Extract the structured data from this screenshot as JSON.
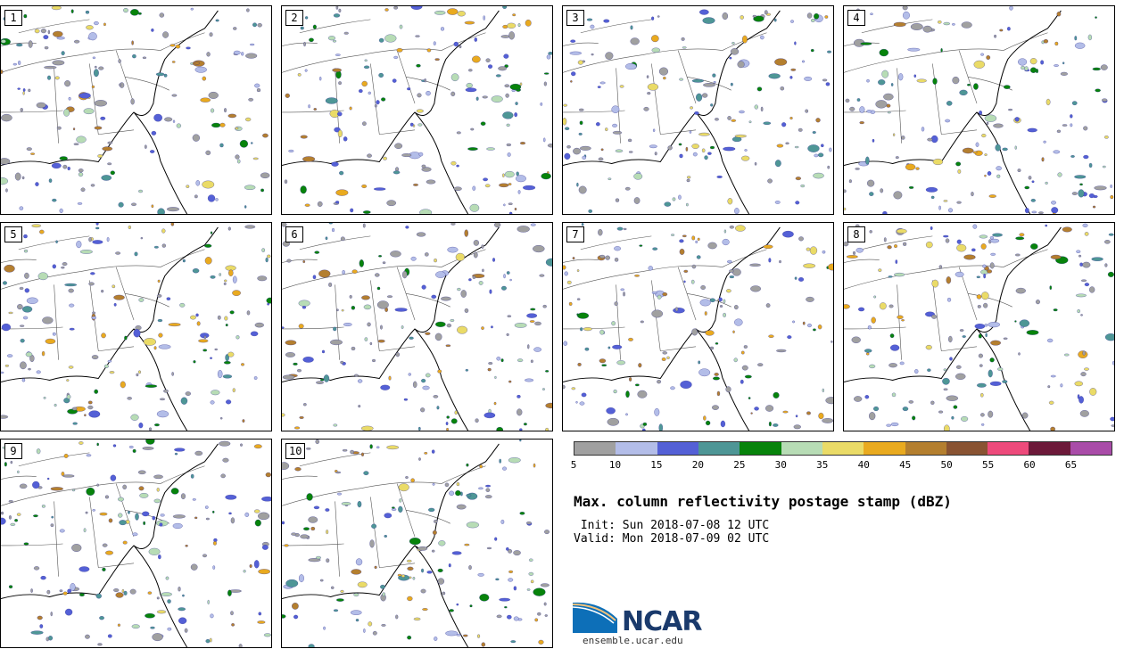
{
  "panels": [
    {
      "label": "1"
    },
    {
      "label": "2"
    },
    {
      "label": "3"
    },
    {
      "label": "4"
    },
    {
      "label": "5"
    },
    {
      "label": "6"
    },
    {
      "label": "7"
    },
    {
      "label": "8"
    },
    {
      "label": "9"
    },
    {
      "label": "10"
    }
  ],
  "colorbar": {
    "colors": [
      "#a0a0a0",
      "#b3bde8",
      "#5460d6",
      "#4e9696",
      "#07830b",
      "#b7dcb5",
      "#eadb67",
      "#e9aa1f",
      "#b47f2f",
      "#895332",
      "#ed4a7b",
      "#6c1939",
      "#a94ca8"
    ],
    "ticks": [
      "5",
      "10",
      "15",
      "20",
      "25",
      "30",
      "35",
      "40",
      "45",
      "50",
      "55",
      "60",
      "65"
    ]
  },
  "title": "Max. column reflectivity postage stamp (dBZ)",
  "init": " Init: Sun 2018-07-08 12 UTC",
  "valid": "Valid: Mon 2018-07-09 02 UTC",
  "logo": {
    "text": "NCAR",
    "url": "ensemble.ucar.edu"
  }
}
